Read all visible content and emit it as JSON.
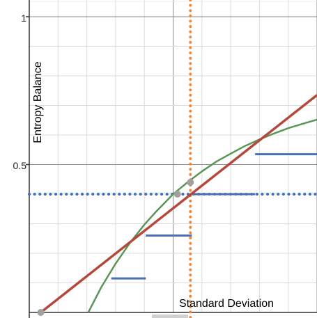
{
  "chart_data": {
    "type": "line",
    "xlabel": "Standard Deviation",
    "ylabel": "Entropy Balance",
    "xlim": [
      0.0,
      1.0
    ],
    "ylim": [
      0.0,
      1.0
    ],
    "y_tick_labels": [
      "0.5",
      "1"
    ],
    "grid": true,
    "series": [
      {
        "kind": "line",
        "color": "#b5483a",
        "x": [
          0.04,
          1.0
        ],
        "y": [
          0.0,
          0.735
        ]
      },
      {
        "kind": "curve",
        "color": "#5a9658",
        "x": [
          0.205,
          0.25,
          0.3,
          0.35,
          0.4,
          0.44,
          0.5,
          0.55,
          0.6,
          0.65,
          0.7,
          0.75,
          0.8,
          0.85,
          0.9,
          0.95,
          1.0
        ],
        "y": [
          0.0,
          0.085,
          0.165,
          0.235,
          0.297,
          0.34,
          0.4,
          0.44,
          0.477,
          0.51,
          0.537,
          0.563,
          0.585,
          0.605,
          0.623,
          0.638,
          0.652
        ]
      },
      {
        "kind": "horizontal-dotted",
        "color": "#3a6fc4",
        "y": 0.4
      },
      {
        "kind": "vertical-dotted",
        "color": "#ef8a3c",
        "x": 0.56
      },
      {
        "kind": "segments",
        "color": "#4a6fb5",
        "segments": [
          {
            "x0": 0.285,
            "x1": 0.405,
            "y": 0.115
          },
          {
            "x0": 0.405,
            "x1": 0.565,
            "y": 0.26
          },
          {
            "x0": 0.565,
            "x1": 0.785,
            "y": 0.4
          },
          {
            "x0": 0.785,
            "x1": 1.0,
            "y": 0.535
          }
        ]
      },
      {
        "kind": "points",
        "color": "#a0a0a0",
        "x": [
          0.04,
          0.515,
          0.56
        ],
        "y": [
          0.0,
          0.4,
          0.44
        ]
      }
    ]
  }
}
